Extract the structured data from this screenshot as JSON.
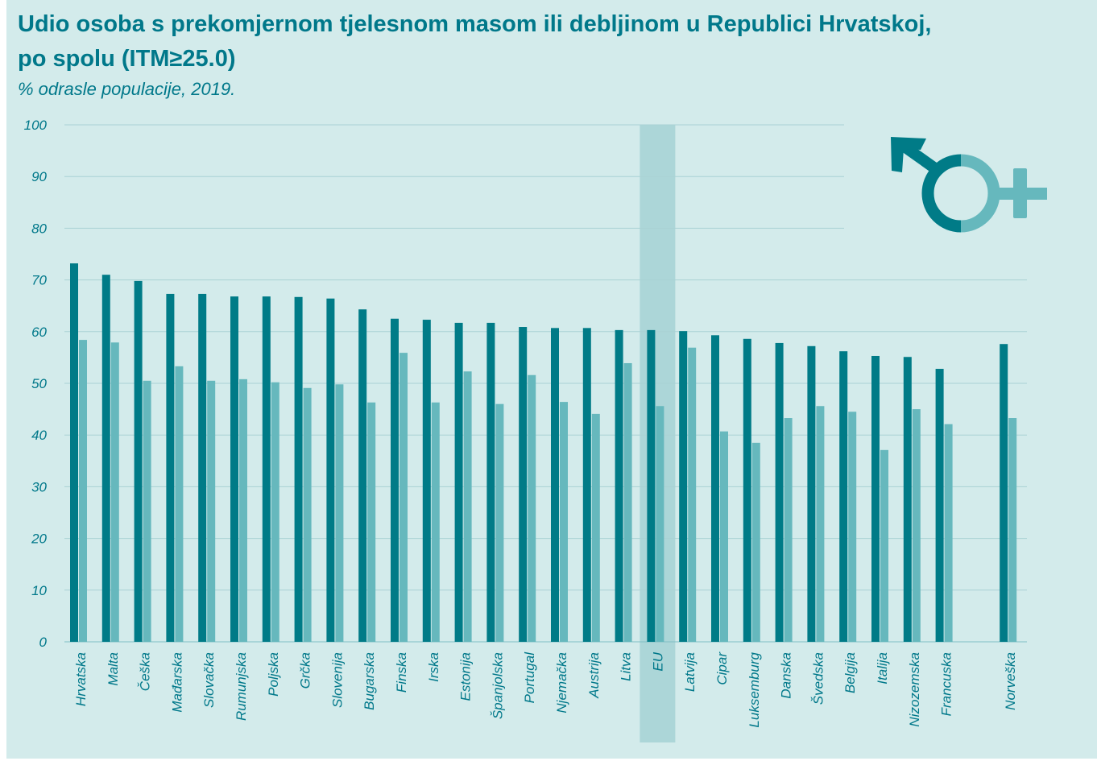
{
  "chart_data": {
    "type": "bar",
    "title": "Udio osoba s prekomjernom tjelesnom masom ili debljinom u Republici Hrvatskoj,",
    "title_line2": "po spolu (ITM≥25.0)",
    "subtitle": "% odrasle populacije, 2019.",
    "ylim": [
      0,
      100
    ],
    "yticks": [
      0,
      10,
      20,
      30,
      40,
      50,
      60,
      70,
      80,
      90,
      100
    ],
    "grid": true,
    "categories": [
      "Hrvatska",
      "Malta",
      "Češka",
      "Mađarska",
      "Slovačka",
      "Rumunjska",
      "Poljska",
      "Grčka",
      "Slovenija",
      "Bugarska",
      "Finska",
      "Irska",
      "Estonija",
      "Španjolska",
      "Portugal",
      "Njemačka",
      "Austrija",
      "Litva",
      "EU",
      "Latvija",
      "Cipar",
      "Luksemburg",
      "Danska",
      "Švedska",
      "Belgija",
      "Italija",
      "Nizozemska",
      "Francuska",
      "",
      "Norveška"
    ],
    "highlight_category": "EU",
    "series": [
      {
        "values": [
          73.2,
          71.0,
          69.8,
          67.3,
          67.3,
          66.8,
          66.8,
          66.7,
          66.4,
          64.3,
          62.5,
          62.3,
          61.7,
          61.7,
          60.9,
          60.7,
          60.7,
          60.3,
          60.3,
          60.1,
          59.3,
          58.6,
          57.8,
          57.2,
          56.2,
          55.3,
          55.1,
          52.8,
          null,
          57.6
        ],
        "color": "#007b87"
      },
      {
        "values": [
          58.4,
          57.9,
          50.5,
          53.3,
          50.5,
          50.8,
          50.2,
          49.1,
          49.8,
          46.3,
          55.9,
          46.3,
          52.3,
          46.0,
          51.6,
          46.4,
          44.1,
          53.9,
          45.6,
          56.9,
          40.7,
          38.5,
          43.3,
          45.6,
          44.5,
          37.1,
          45.0,
          42.1,
          null,
          43.3
        ],
        "color": "#66b8bd"
      }
    ],
    "colors": {
      "background": "#d3ebeb",
      "highlight": "#acd6d8",
      "grid": "#a9d2d4",
      "text": "#00788a"
    },
    "icon": "male-female-gender-icon"
  }
}
